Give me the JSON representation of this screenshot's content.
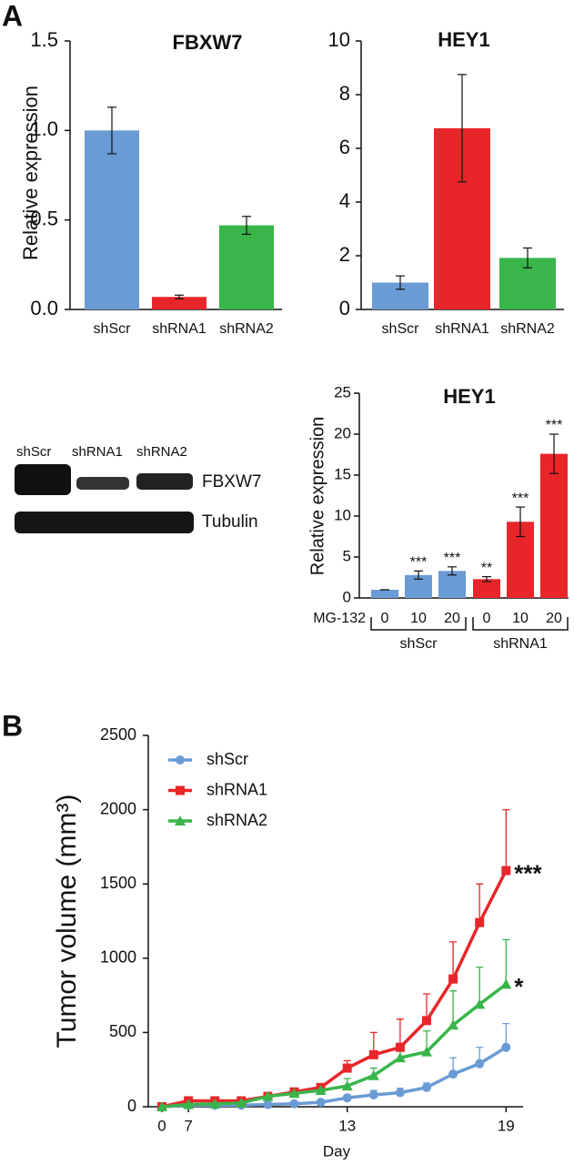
{
  "panel_labels": [
    "A",
    "B"
  ],
  "blot": {
    "lanes": [
      "shScr",
      "shRNA1",
      "shRNA2"
    ],
    "bands": [
      "FBXW7",
      "Tubulin"
    ]
  },
  "chart_data": [
    {
      "type": "bar",
      "title": "FBXW7",
      "y_label": "Relative expression",
      "categories": [
        "shScr",
        "shRNA1",
        "shRNA2"
      ],
      "values": [
        1.0,
        0.07,
        0.47
      ],
      "errors": [
        0.13,
        0.01,
        0.05
      ],
      "colors": [
        "#6a9bd4",
        "#e8262a",
        "#39b54a"
      ],
      "ylim": [
        0,
        1.5
      ],
      "yticks": [
        {
          "value": 0,
          "label": "0.0"
        },
        0.5,
        {
          "value": 1,
          "label": "1.0"
        },
        1.5
      ]
    },
    {
      "type": "bar",
      "title": "HEY1",
      "categories": [
        "shScr",
        "shRNA1",
        "shRNA2"
      ],
      "values": [
        1.0,
        6.75,
        1.92
      ],
      "errors": [
        0.25,
        2.0,
        0.37
      ],
      "colors": [
        "#6a9bd4",
        "#e8262a",
        "#39b54a"
      ],
      "ylim": [
        0,
        10
      ],
      "yticks": [
        0,
        2,
        4,
        6,
        8,
        10
      ]
    },
    {
      "type": "bar",
      "title": "HEY1",
      "y_label": "Relative expression",
      "x_label": "MG-132",
      "categories": [
        "0",
        "10",
        "20",
        "0",
        "10",
        "20"
      ],
      "group_labels": [
        "shScr",
        "shRNA1"
      ],
      "values": [
        1.0,
        2.8,
        3.3,
        2.3,
        9.3,
        17.6
      ],
      "errors": [
        0,
        0.5,
        0.5,
        0.3,
        1.8,
        2.4
      ],
      "annotations": [
        null,
        "***",
        "***",
        "**",
        "***",
        "***"
      ],
      "colors": [
        "#6a9bd4",
        "#6a9bd4",
        "#6a9bd4",
        "#e8262a",
        "#e8262a",
        "#e8262a"
      ],
      "ylim": [
        0,
        25
      ],
      "yticks": [
        0,
        5,
        10,
        15,
        20,
        25
      ]
    },
    {
      "type": "line",
      "y_label": "Tumor volume (mm³)",
      "x_label": "Day",
      "categories": [
        "0",
        "7",
        null,
        null,
        null,
        null,
        null,
        "13",
        null,
        null,
        null,
        null,
        null,
        "19"
      ],
      "ylim": [
        0,
        2500
      ],
      "yticks": [
        0,
        500,
        1000,
        1500,
        2000,
        2500
      ],
      "legend": "top-left",
      "series": [
        {
          "name": "shScr",
          "color": "#6a9bd4",
          "marker": "circle",
          "values": [
            0,
            10,
            10,
            10,
            15,
            20,
            30,
            60,
            80,
            95,
            130,
            220,
            290,
            400
          ],
          "errors": [
            0,
            0,
            0,
            0,
            0,
            0,
            0,
            20,
            30,
            30,
            30,
            110,
            110,
            160
          ]
        },
        {
          "name": "shRNA1",
          "color": "#e8262a",
          "marker": "square",
          "annotation": "***",
          "values": [
            0,
            40,
            40,
            40,
            70,
            100,
            130,
            260,
            350,
            400,
            580,
            860,
            1240,
            1590
          ],
          "errors": [
            0,
            0,
            0,
            0,
            0,
            0,
            20,
            50,
            150,
            190,
            180,
            250,
            260,
            410
          ]
        },
        {
          "name": "shRNA2",
          "color": "#39b54a",
          "marker": "triangle",
          "annotation": "*",
          "values": [
            0,
            15,
            20,
            25,
            70,
            90,
            110,
            140,
            210,
            330,
            370,
            550,
            690,
            825
          ],
          "errors": [
            0,
            0,
            0,
            0,
            0,
            0,
            20,
            50,
            50,
            80,
            140,
            230,
            250,
            300
          ]
        }
      ]
    }
  ]
}
